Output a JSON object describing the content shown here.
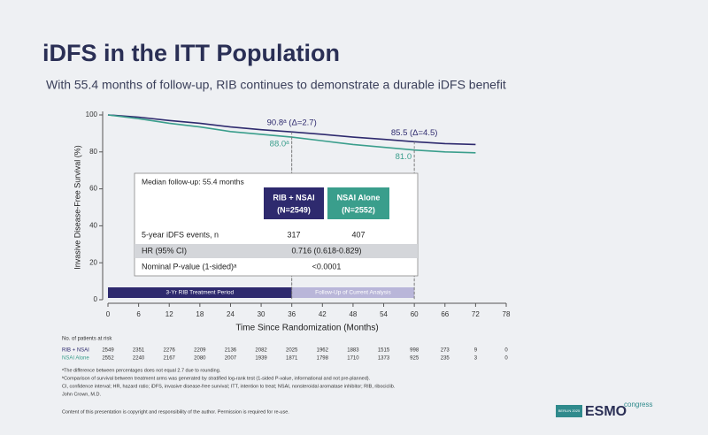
{
  "title": "iDFS in the ITT Population",
  "subtitle": "With 55.4 months of follow-up, RIB continues to demonstrate a durable iDFS benefit",
  "chart_data": {
    "type": "line",
    "x_label": "Time Since Randomization (Months)",
    "y_label": "Invasive Disease-Free Survival (%)",
    "xlim": [
      0,
      78
    ],
    "xticks": [
      0,
      6,
      12,
      18,
      24,
      30,
      36,
      42,
      48,
      54,
      60,
      66,
      72,
      78
    ],
    "ylim": [
      0,
      100
    ],
    "yticks": [
      0,
      20,
      40,
      60,
      80,
      100
    ],
    "x": [
      0,
      6,
      12,
      18,
      24,
      30,
      36,
      42,
      48,
      54,
      60,
      66,
      72
    ],
    "series": [
      {
        "name": "RIB + NSAI",
        "color": "#2e2a6e",
        "values": [
          100,
          98.8,
          97,
          95.5,
          93.5,
          92,
          90.8,
          89.5,
          88,
          86.8,
          85.5,
          84.5,
          84
        ]
      },
      {
        "name": "NSAI Alone",
        "color": "#3a9e8c",
        "values": [
          100,
          98,
          95.5,
          93.5,
          91,
          89.5,
          88.0,
          86,
          84,
          82.5,
          81.0,
          80,
          79.5
        ]
      }
    ],
    "annotations": [
      {
        "text": "90.8ᵃ (Δ=2.7)",
        "x": 36,
        "y": 90.8,
        "position": "above",
        "color": "#2e2a6e"
      },
      {
        "text": "85.5 (Δ=4.5)",
        "x": 60,
        "y": 85.5,
        "position": "above",
        "color": "#2e2a6e"
      },
      {
        "text": "88.0ᵃ",
        "x": 36,
        "y": 88.0,
        "position": "below",
        "color": "#3a9e8c"
      },
      {
        "text": "81.0",
        "x": 60,
        "y": 81.0,
        "position": "below",
        "color": "#3a9e8c"
      }
    ],
    "periods": [
      {
        "label": "3-Yr RIB Treatment Period",
        "start": 0,
        "end": 36,
        "color": "#2e2a6e"
      },
      {
        "label": "Follow-Up of Current Analysis",
        "start": 36,
        "end": 60,
        "color": "#b9b6d9"
      }
    ],
    "inset_table": {
      "caption": "Median follow-up: 55.4 months",
      "headers": [
        "RIB + NSAI",
        "(N=2549)",
        "NSAI Alone",
        "(N=2552)"
      ],
      "rows": [
        [
          "5-year iDFS events, n",
          "317",
          "407"
        ],
        [
          "HR (95% CI)",
          "0.716 (0.618-0.829)"
        ],
        [
          "Nominal P-value (1-sided)ᵃ",
          "<0.0001"
        ]
      ]
    },
    "at_risk": {
      "title": "No. of patients at risk",
      "rows": [
        {
          "name": "RIB + NSAI",
          "values": [
            2549,
            2351,
            2276,
            2209,
            2136,
            2082,
            2025,
            1962,
            1883,
            1515,
            998,
            273,
            9,
            0
          ]
        },
        {
          "name": "NSAI Alone",
          "values": [
            2552,
            2240,
            2167,
            2080,
            2007,
            1939,
            1871,
            1798,
            1710,
            1373,
            925,
            235,
            3,
            0
          ]
        }
      ]
    }
  },
  "footnotes": [
    "ᵃThe difference between percentages does not equal 2.7 due to rounding.",
    "ᵇComparison of survival between treatment arms was generated by stratified log-rank test (1-sided P-value, informational and not pre-planned).",
    "CI, confidence interval; HR, hazard ratio; iDFS, invasive disease-free survival; ITT, intention to treat; NSAI, nonsteroidal aromatase inhibitor; RIB, ribociclib.",
    "John Crown, M.D."
  ],
  "copyright": "Content of this presentation is copyright and responsibility of the author. Permission is required for re-use.",
  "logo": {
    "city": "BERLIN 2025",
    "brand": "ESMO",
    "word": "congress"
  }
}
